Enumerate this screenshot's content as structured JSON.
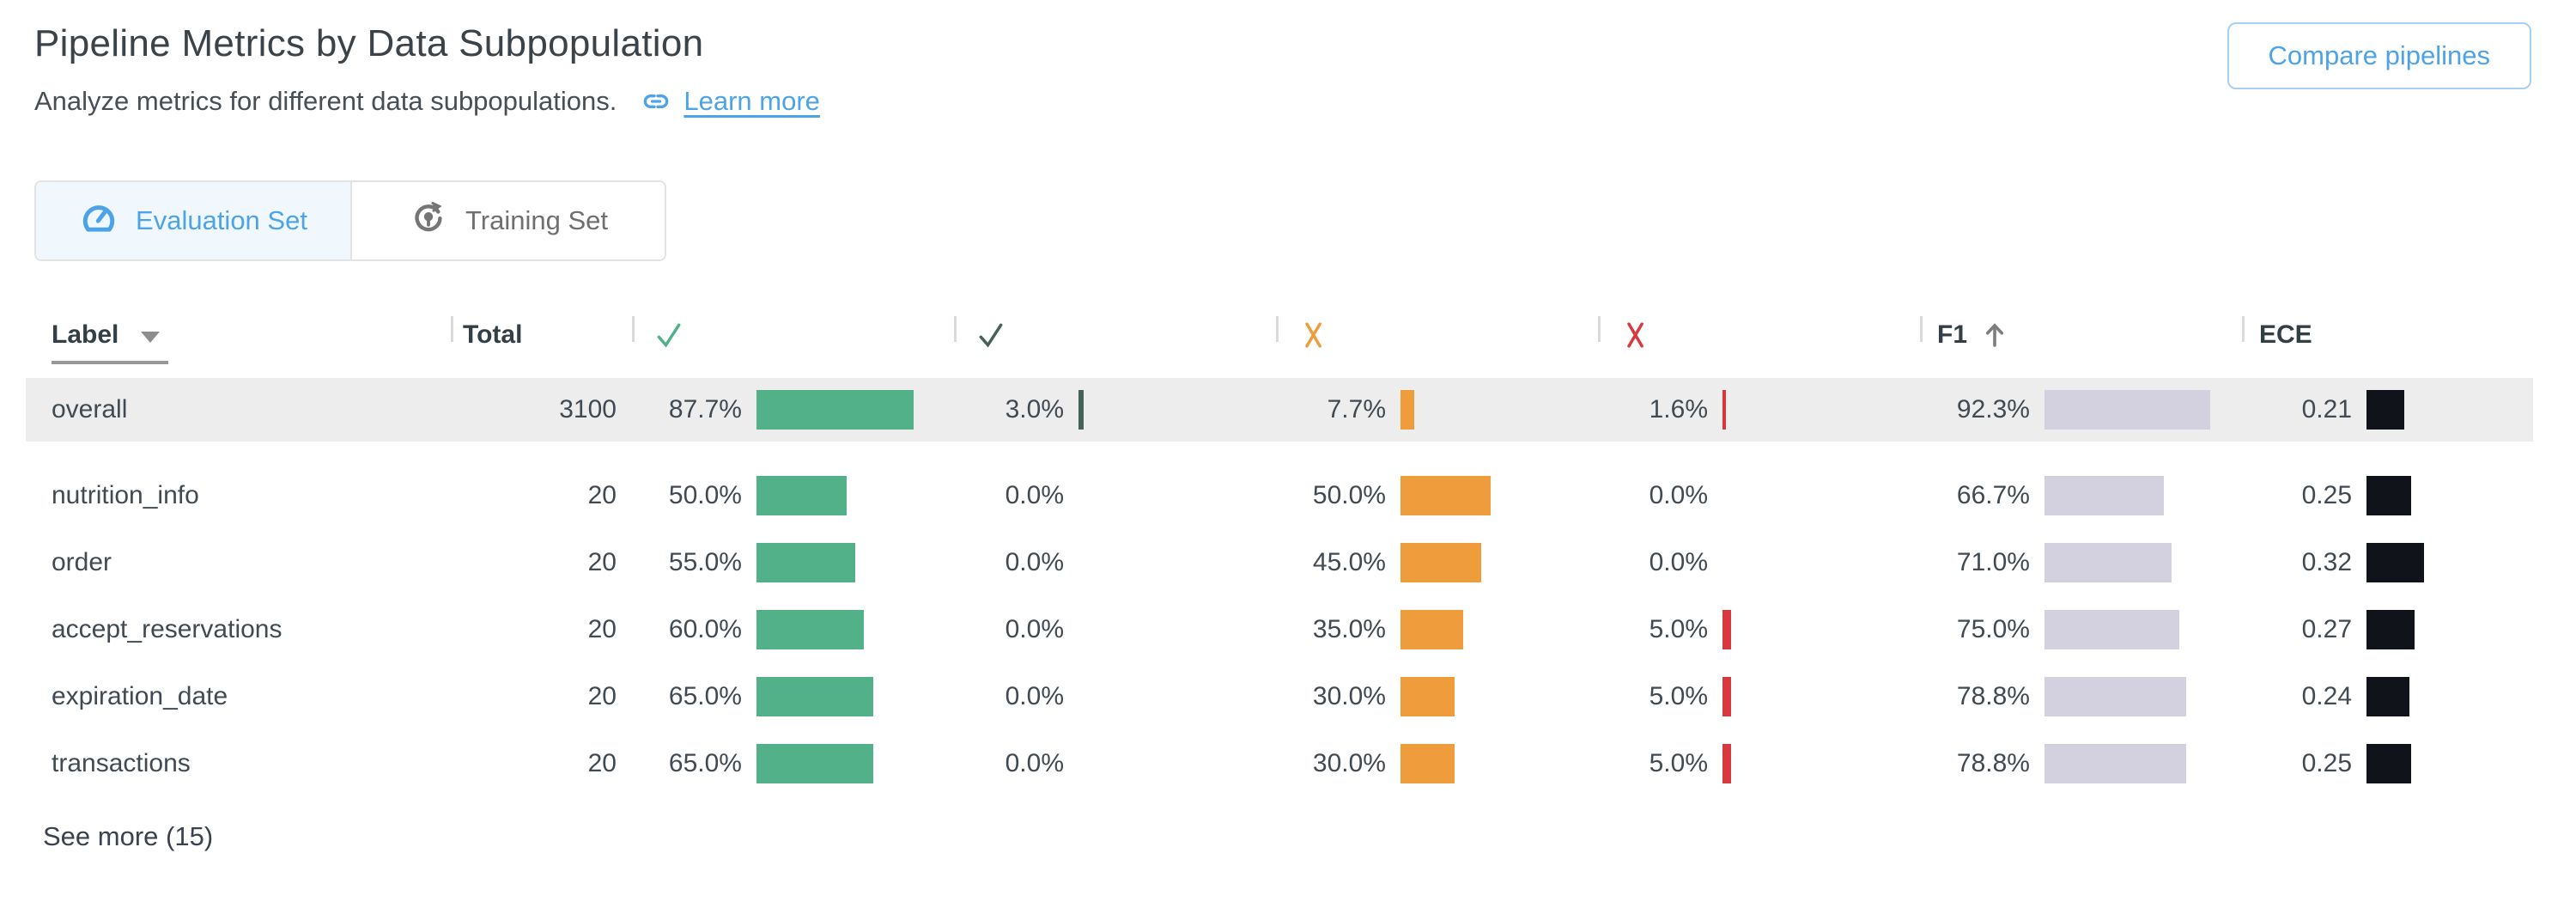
{
  "page": {
    "title": "Pipeline Metrics by Data Subpopulation",
    "subtitle": "Analyze metrics for different data subpopulations.",
    "learn_more_label": "Learn more",
    "compare_button_label": "Compare pipelines",
    "see_more_label": "See more (15)"
  },
  "tabs": [
    {
      "label": "Evaluation Set",
      "icon": "gauge-icon",
      "active": true
    },
    {
      "label": "Training Set",
      "icon": "training-icon",
      "active": false
    }
  ],
  "colors": {
    "accent_blue": "#4da3e8",
    "active_tab_bg": "#f0f8fe",
    "highlight_row_bg": "#ededee",
    "check_green": "#52b189",
    "check_dark": "#466156",
    "x_orange": "#ef9d3c",
    "x_red": "#d7393f",
    "f1_lavender": "#d3d1e0",
    "ece_black": "#10131a"
  },
  "table": {
    "columns": [
      {
        "key": "label",
        "label": "Label",
        "sortable": true
      },
      {
        "key": "total",
        "label": "Total"
      },
      {
        "key": "check_green",
        "icon": "check-green-icon",
        "color": "#52b189"
      },
      {
        "key": "check_dark",
        "icon": "check-dark-icon",
        "color": "#466156"
      },
      {
        "key": "x_orange",
        "icon": "x-orange-icon",
        "color": "#ef9d3c"
      },
      {
        "key": "x_red",
        "icon": "x-red-icon",
        "color": "#d7393f"
      },
      {
        "key": "f1",
        "label": "F1",
        "sorted": "ascending",
        "color": "#d3d1e0"
      },
      {
        "key": "ece",
        "label": "ECE",
        "color": "#10131a"
      }
    ],
    "rows": [
      {
        "label": "overall",
        "total": "3100",
        "highlight": true,
        "metrics": [
          {
            "text": "87.7%",
            "frac": 0.877
          },
          {
            "text": "3.0%",
            "frac": 0.03
          },
          {
            "text": "7.7%",
            "frac": 0.077
          },
          {
            "text": "1.6%",
            "frac": 0.016
          },
          {
            "text": "92.3%",
            "frac": 0.923
          },
          {
            "text": "0.21",
            "frac": 0.21
          }
        ]
      },
      {
        "label": "nutrition_info",
        "total": "20",
        "highlight": false,
        "metrics": [
          {
            "text": "50.0%",
            "frac": 0.5
          },
          {
            "text": "0.0%",
            "frac": 0
          },
          {
            "text": "50.0%",
            "frac": 0.5
          },
          {
            "text": "0.0%",
            "frac": 0
          },
          {
            "text": "66.7%",
            "frac": 0.667
          },
          {
            "text": "0.25",
            "frac": 0.25
          }
        ]
      },
      {
        "label": "order",
        "total": "20",
        "highlight": false,
        "metrics": [
          {
            "text": "55.0%",
            "frac": 0.55
          },
          {
            "text": "0.0%",
            "frac": 0
          },
          {
            "text": "45.0%",
            "frac": 0.45
          },
          {
            "text": "0.0%",
            "frac": 0
          },
          {
            "text": "71.0%",
            "frac": 0.71
          },
          {
            "text": "0.32",
            "frac": 0.32
          }
        ]
      },
      {
        "label": "accept_reservations",
        "total": "20",
        "highlight": false,
        "metrics": [
          {
            "text": "60.0%",
            "frac": 0.6
          },
          {
            "text": "0.0%",
            "frac": 0
          },
          {
            "text": "35.0%",
            "frac": 0.35
          },
          {
            "text": "5.0%",
            "frac": 0.05
          },
          {
            "text": "75.0%",
            "frac": 0.75
          },
          {
            "text": "0.27",
            "frac": 0.27
          }
        ]
      },
      {
        "label": "expiration_date",
        "total": "20",
        "highlight": false,
        "metrics": [
          {
            "text": "65.0%",
            "frac": 0.65
          },
          {
            "text": "0.0%",
            "frac": 0
          },
          {
            "text": "30.0%",
            "frac": 0.3
          },
          {
            "text": "5.0%",
            "frac": 0.05
          },
          {
            "text": "78.8%",
            "frac": 0.788
          },
          {
            "text": "0.24",
            "frac": 0.24
          }
        ]
      },
      {
        "label": "transactions",
        "total": "20",
        "highlight": false,
        "metrics": [
          {
            "text": "65.0%",
            "frac": 0.65
          },
          {
            "text": "0.0%",
            "frac": 0
          },
          {
            "text": "30.0%",
            "frac": 0.3
          },
          {
            "text": "5.0%",
            "frac": 0.05
          },
          {
            "text": "78.8%",
            "frac": 0.788
          },
          {
            "text": "0.25",
            "frac": 0.25
          }
        ]
      }
    ]
  }
}
